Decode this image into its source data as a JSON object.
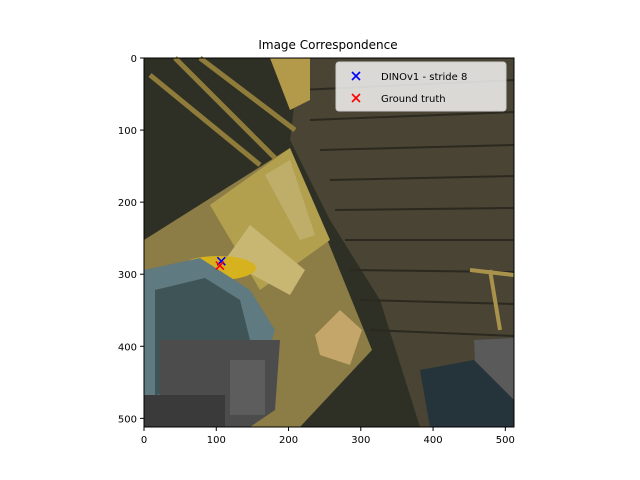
{
  "chart_data": {
    "type": "scatter",
    "title": "Image Correspondence",
    "xlabel": "",
    "ylabel": "",
    "xlim": [
      0,
      512
    ],
    "ylim": [
      512,
      0
    ],
    "y_axis_inverted": true,
    "grid": false,
    "legend_position": "upper right",
    "background": "image",
    "x_ticks": [
      0,
      100,
      200,
      300,
      400,
      500
    ],
    "y_ticks": [
      0,
      100,
      200,
      300,
      400,
      500
    ],
    "series": [
      {
        "name": "DINOv1 - stride 8",
        "marker": "x",
        "color": "#0000ff",
        "points": [
          {
            "x": 107,
            "y": 282
          }
        ]
      },
      {
        "name": "Ground truth",
        "marker": "x",
        "color": "#ff0000",
        "points": [
          {
            "x": 105,
            "y": 288
          }
        ]
      }
    ]
  }
}
